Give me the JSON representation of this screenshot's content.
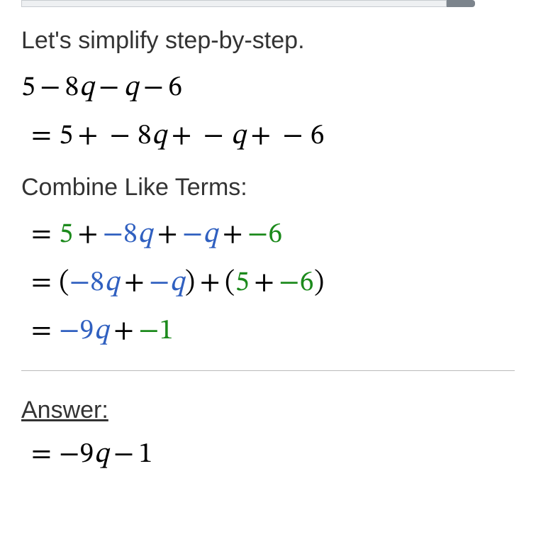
{
  "intro": "Let's simplify step-by-step.",
  "combine_label": "Combine Like Terms:",
  "answer_label": "Answer:",
  "expr": {
    "original": {
      "t1": "5",
      "t2": "8",
      "v2": "q",
      "v3": "q",
      "t4": "6"
    },
    "expanded": {
      "lead": "5",
      "a": "8",
      "va": "q",
      "vb": "q",
      "c": "6"
    },
    "color1": {
      "c1": "5",
      "c2": "−8",
      "v2": "q",
      "c3": "−",
      "v3": "q",
      "c4": "−6"
    },
    "group": {
      "g1a": "−8",
      "g1va": "q",
      "g1b": "−",
      "g1vb": "q",
      "g2a": "5",
      "g2b": "−6"
    },
    "result": {
      "a": "−9",
      "va": "q",
      "b": "−1"
    },
    "final": {
      "a": "9",
      "va": "q",
      "b": "1"
    }
  },
  "colors": {
    "green": "#1c8a1c",
    "blue": "#3060c0",
    "text": "#333333",
    "math": "#000000"
  }
}
